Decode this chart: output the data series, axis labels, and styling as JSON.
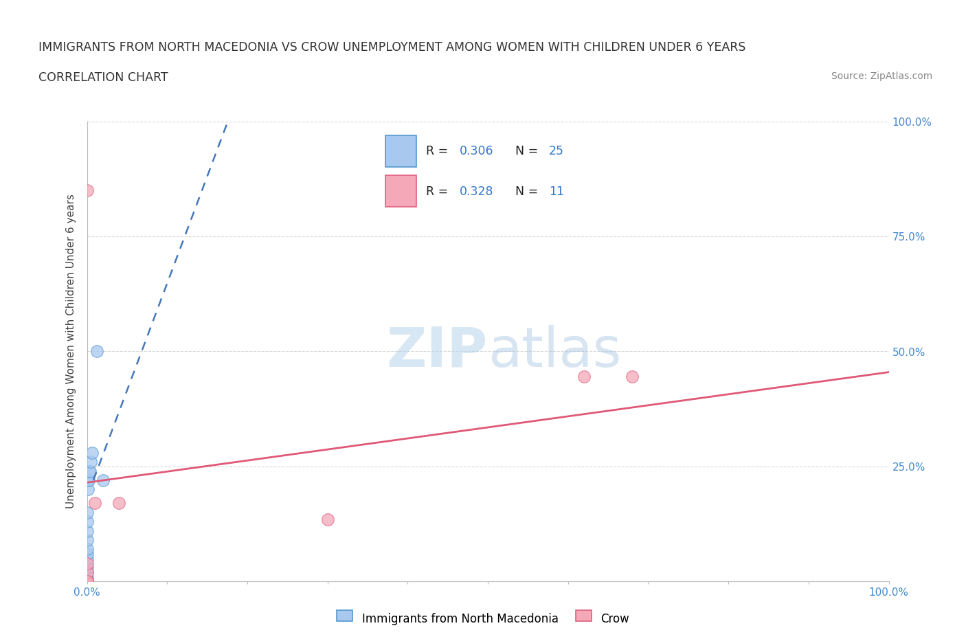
{
  "title_line1": "IMMIGRANTS FROM NORTH MACEDONIA VS CROW UNEMPLOYMENT AMONG WOMEN WITH CHILDREN UNDER 6 YEARS",
  "title_line2": "CORRELATION CHART",
  "source": "Source: ZipAtlas.com",
  "ylabel": "Unemployment Among Women with Children Under 6 years",
  "xlim": [
    0.0,
    1.0
  ],
  "ylim": [
    0.0,
    1.0
  ],
  "xtick_positions": [
    0.0,
    0.1,
    0.2,
    0.3,
    0.4,
    0.5,
    0.6,
    0.7,
    0.8,
    0.9,
    1.0
  ],
  "xtick_labels": [
    "0.0%",
    "",
    "",
    "",
    "",
    "",
    "",
    "",
    "",
    "",
    "100.0%"
  ],
  "ytick_positions": [
    0.0,
    0.25,
    0.5,
    0.75,
    1.0
  ],
  "ytick_labels_right": [
    "",
    "25.0%",
    "50.0%",
    "75.0%",
    "100.0%"
  ],
  "blue_R": "0.306",
  "blue_N": "25",
  "pink_R": "0.328",
  "pink_N": "11",
  "blue_scatter_x": [
    0.0,
    0.0,
    0.0,
    0.0,
    0.0,
    0.0,
    0.0,
    0.0,
    0.0,
    0.0,
    0.0,
    0.0,
    0.0,
    0.0,
    0.0,
    0.0,
    0.001,
    0.001,
    0.002,
    0.003,
    0.004,
    0.005,
    0.006,
    0.012,
    0.02
  ],
  "blue_scatter_y": [
    0.0,
    0.0,
    0.0,
    0.0,
    0.0,
    0.0,
    0.01,
    0.02,
    0.03,
    0.05,
    0.06,
    0.07,
    0.09,
    0.11,
    0.13,
    0.15,
    0.2,
    0.22,
    0.22,
    0.24,
    0.24,
    0.26,
    0.28,
    0.5,
    0.22
  ],
  "pink_scatter_x": [
    0.0,
    0.0,
    0.0,
    0.0,
    0.01,
    0.04,
    0.3,
    0.62,
    0.68,
    0.0,
    0.0
  ],
  "pink_scatter_y": [
    0.0,
    0.0,
    0.02,
    0.04,
    0.17,
    0.17,
    0.135,
    0.445,
    0.445,
    0.85,
    0.0
  ],
  "blue_line_x": [
    0.008,
    0.18
  ],
  "blue_line_y": [
    0.22,
    1.02
  ],
  "pink_line_x": [
    0.0,
    1.0
  ],
  "pink_line_y": [
    0.215,
    0.455
  ],
  "blue_color": "#a8c8f0",
  "blue_edge_color": "#5599cc",
  "blue_line_color": "#4477bb",
  "pink_color": "#f4a8b8",
  "pink_edge_color": "#e06080",
  "pink_line_color": "#e05878",
  "background_color": "#ffffff",
  "grid_color": "#d8d8d8",
  "grid_style": "--"
}
